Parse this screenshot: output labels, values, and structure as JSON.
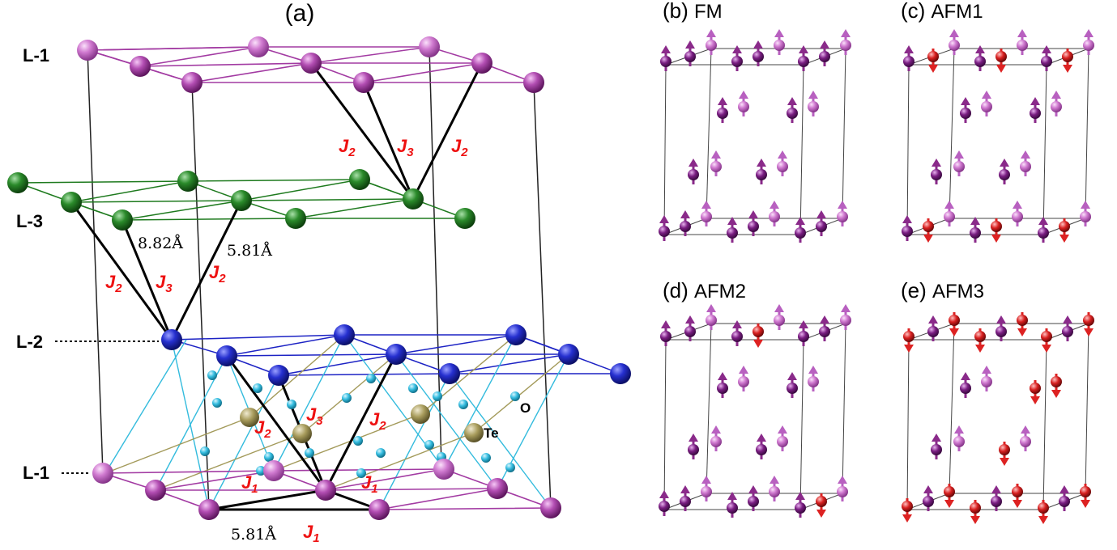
{
  "panel_a": {
    "label": "(a)",
    "layers": {
      "l1_top": "L-1",
      "l3": "L-3",
      "l2": "L-2",
      "l1_bottom": "L-1"
    },
    "distances": {
      "d1": "8.82Å",
      "d2": "5.81Å",
      "d3": "5.81Å"
    },
    "j_labels": {
      "j2": "J",
      "j2_sub": "2",
      "j3": "J",
      "j3_sub": "3",
      "j1": "J",
      "j1_sub": "1"
    },
    "atom_labels": {
      "te": "Te",
      "o": "O"
    },
    "colors": {
      "L1": "#a23aa2",
      "L1_light": "#d06fd0",
      "L2": "#1c22c4",
      "L3": "#1e7a1e",
      "O": "#33bbdd",
      "Te": "#a39a5a",
      "J": "#ee1111",
      "bond": "#000000"
    }
  },
  "panels": [
    {
      "id": "b",
      "label": "(b)",
      "name": "FM"
    },
    {
      "id": "c",
      "label": "(c)",
      "name": "AFM1"
    },
    {
      "id": "d",
      "label": "(d)",
      "name": "AFM2"
    },
    {
      "id": "e",
      "label": "(e)",
      "name": "AFM3"
    }
  ],
  "spin_colors": {
    "up": "#8a2a8a",
    "up_light": "#b860c0",
    "down": "#dd2222"
  }
}
